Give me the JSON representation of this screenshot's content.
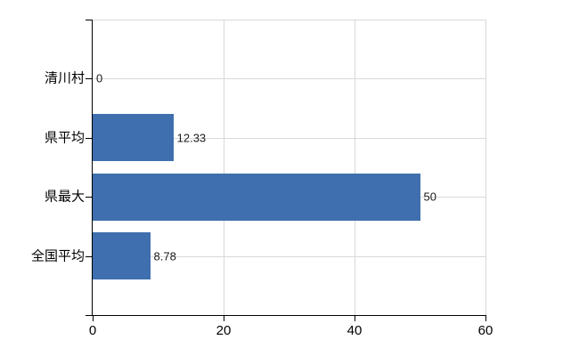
{
  "chart_data": {
    "type": "bar",
    "orientation": "horizontal",
    "title": "",
    "categories": [
      "清川村",
      "県平均",
      "県最大",
      "全国平均"
    ],
    "values": [
      0,
      12.33,
      50,
      8.78
    ],
    "data_labels": [
      "0",
      "12.33",
      "50",
      "8.78"
    ],
    "xlim": [
      0,
      60
    ],
    "x_ticks": [
      0,
      20,
      40,
      60
    ],
    "x_tick_labels": [
      "0",
      "20",
      "40",
      "60"
    ],
    "grid": true,
    "legend": false,
    "colors": {
      "bar_fill": "#3f6fae",
      "gridline": "#d9d9d9",
      "axis": "#000000",
      "text": "#000000",
      "data_label_text": "#1a1a1a",
      "background": "#ffffff"
    }
  }
}
